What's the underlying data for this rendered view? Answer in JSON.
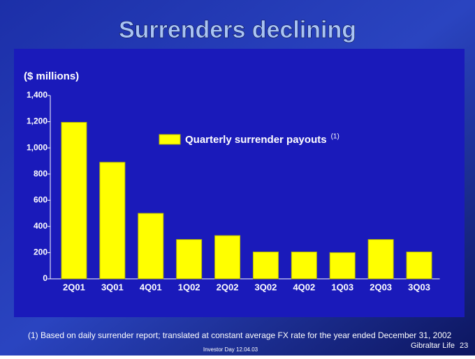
{
  "title": "Surrenders declining",
  "footnote": "(1) Based on daily surrender report; translated at constant average FX rate for the year ended December 31, 2002",
  "footer": {
    "company": "Gibraltar Life",
    "page": "23",
    "event": "Investor Day 12.04.03"
  },
  "chart_data": {
    "type": "bar",
    "y_label": "($ millions)",
    "categories": [
      "2Q01",
      "3Q01",
      "4Q01",
      "1Q02",
      "2Q02",
      "3Q02",
      "4Q02",
      "1Q03",
      "2Q03",
      "3Q03"
    ],
    "series": [
      {
        "name": "Quarterly surrender payouts",
        "color": "#ffff00",
        "values": [
          1195,
          890,
          500,
          300,
          330,
          205,
          205,
          200,
          300,
          205
        ]
      }
    ],
    "legend_note": "(1)",
    "ylim": [
      0,
      1400
    ],
    "yticks": [
      0,
      200,
      400,
      600,
      800,
      {
        "value": 1000,
        "label": "1,000"
      },
      {
        "value": 1200,
        "label": "1,200"
      },
      {
        "value": 1400,
        "label": "1,400"
      }
    ],
    "grid": false
  }
}
